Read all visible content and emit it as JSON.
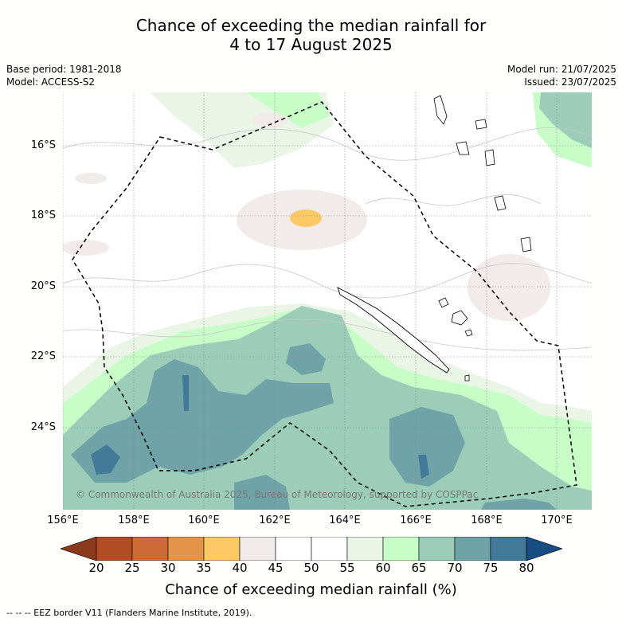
{
  "title": {
    "line1": "Chance of exceeding the median rainfall for",
    "line2": "4 to 17 August 2025"
  },
  "meta": {
    "base_period": "Base period: 1981-2018",
    "model": "Model: ACCESS-S2",
    "model_run": "Model run: 21/07/2025",
    "issued": "Issued: 23/07/2025"
  },
  "map": {
    "lat_labels": [
      "16°S",
      "18°S",
      "20°S",
      "22°S",
      "24°S"
    ],
    "lon_labels": [
      "156°E",
      "158°E",
      "160°E",
      "162°E",
      "164°E",
      "166°E",
      "168°E",
      "170°E"
    ],
    "copyright": "© Commonwealth of Australia 2025, Bureau of Meteorology, supported by COSPPac",
    "colors": {
      "c20_25": "#b34b24",
      "c25_30": "#cf6a34",
      "c30_35": "#e39449",
      "c35_40": "#fcc966",
      "c40_45": "#f1ece9",
      "c45_55": "#ffffff",
      "c55_60": "#eaf5e7",
      "c60_65": "#c9fdc7",
      "c65_70": "#9bcdb8",
      "c70_75": "#6fa3a8",
      "c75_80": "#437a9a",
      "below20": "#8c3a1e",
      "above80": "#164d82"
    }
  },
  "colorbar": {
    "ticks": [
      "20",
      "25",
      "30",
      "35",
      "40",
      "45",
      "50",
      "55",
      "60",
      "65",
      "70",
      "75",
      "80"
    ],
    "label": "Chance of exceeding median rainfall (%)"
  },
  "legend": {
    "eez": "-- -- -- EEZ border V11 (Flanders Marine Institute, 2019)."
  }
}
